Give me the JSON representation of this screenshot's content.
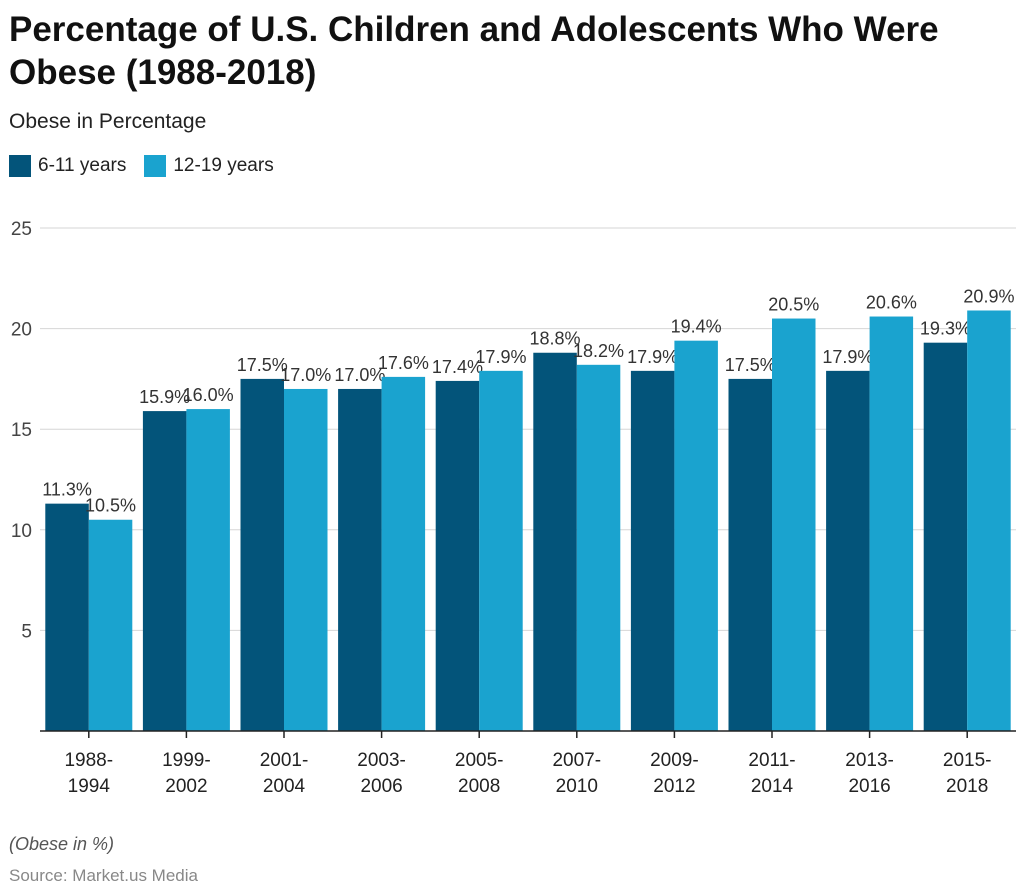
{
  "title": "Percentage of U.S. Children and Adolescents Who Were Obese (1988-2018)",
  "subtitle": "Obese in Percentage",
  "note": "(Obese in %)",
  "source": "Source: Market.us Media",
  "chart_data": {
    "type": "bar",
    "categories": [
      [
        "1988-",
        "1994"
      ],
      [
        "1999-",
        "2002"
      ],
      [
        "2001-",
        "2004"
      ],
      [
        "2003-",
        "2006"
      ],
      [
        "2005-",
        "2008"
      ],
      [
        "2007-",
        "2010"
      ],
      [
        "2009-",
        "2012"
      ],
      [
        "2011-",
        "2014"
      ],
      [
        "2013-",
        "2016"
      ],
      [
        "2015-",
        "2018"
      ]
    ],
    "series": [
      {
        "name": "6-11 years",
        "color": "#03547a",
        "values": [
          11.3,
          15.9,
          17.5,
          17.0,
          17.4,
          18.8,
          17.9,
          17.5,
          17.9,
          19.3
        ]
      },
      {
        "name": "12-19 years",
        "color": "#1aa3cf",
        "values": [
          10.5,
          16.0,
          17.0,
          17.6,
          17.9,
          18.2,
          19.4,
          20.5,
          20.6,
          20.9
        ]
      }
    ],
    "ylim": [
      0,
      25
    ],
    "yticks": [
      5,
      10,
      15,
      20,
      25
    ],
    "grid": true,
    "legend": "top-left",
    "value_suffix": "%"
  }
}
